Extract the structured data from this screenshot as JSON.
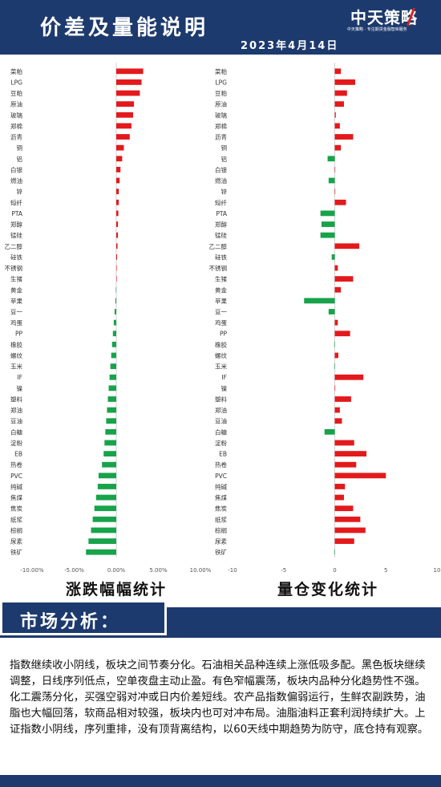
{
  "header": {
    "title": "价差及量能说明",
    "date": "2023年4月14日",
    "logo": "中天策略",
    "logo_sub": "中天策略 · 专注期货金融智库服务"
  },
  "captions": {
    "left": "涨跌幅幅统计",
    "right": "量仓变化统计"
  },
  "section": {
    "title": "市场分析："
  },
  "analysis_text": "指数继续收小阴线，板块之间节奏分化。石油相关品种连续上涨低吸多配。黑色板块继续调整，日线序列低点，空单夜盘主动止盈。有色窄幅震荡，板块内品种分化趋势性不强。化工震荡分化，买强空弱对冲或日内价差短线。农产品指数偏弱运行，生鲜农副跌势，油脂也大幅回落，软商品相对较强，板块内也可对冲布局。油脂油料正套利润持续扩大。上证指数小阴线，序列重排，没有顶背离结构，以60天线中期趋势为防守，底仓持有观察。",
  "colors": {
    "header": "#1d3a6e",
    "positive": "#e3191c",
    "negative": "#17a34a"
  },
  "chart_data": [
    {
      "type": "bar",
      "orientation": "horizontal",
      "title": "涨跌幅幅统计",
      "categories": [
        "菜粕",
        "LPG",
        "豆粕",
        "原油",
        "玻璃",
        "郑棉",
        "沥青",
        "铜",
        "铝",
        "白银",
        "燃油",
        "锌",
        "短纤",
        "PTA",
        "郑醇",
        "锰硅",
        "乙二醇",
        "硅铁",
        "不锈钢",
        "生猪",
        "黄金",
        "苹果",
        "豆一",
        "鸡蛋",
        "PP",
        "橡胶",
        "螺纹",
        "玉米",
        "IF",
        "镍",
        "塑料",
        "郑油",
        "豆油",
        "白糖",
        "淀粉",
        "EB",
        "热卷",
        "PVC",
        "纯碱",
        "焦煤",
        "焦炭",
        "纸浆",
        "棕榈",
        "尿素",
        "铁矿"
      ],
      "values": [
        3.2,
        3.0,
        2.8,
        2.1,
        2.0,
        1.8,
        1.6,
        0.9,
        0.7,
        0.5,
        0.4,
        0.3,
        0.3,
        0.25,
        0.2,
        0.2,
        0.15,
        0.1,
        0.05,
        0.0,
        -0.05,
        -0.1,
        -0.2,
        -0.3,
        -0.4,
        -0.5,
        -0.6,
        -0.7,
        -0.8,
        -0.9,
        -1.0,
        -1.1,
        -1.2,
        -1.3,
        -1.4,
        -1.5,
        -1.7,
        -2.1,
        -2.2,
        -2.4,
        -2.6,
        -2.8,
        -3.0,
        -3.3,
        -3.6
      ],
      "xlim": [
        -10,
        10
      ],
      "tick_labels": [
        "-10.00%",
        "-5.00%",
        "0.00%",
        "5.00%",
        "10.00%"
      ],
      "ticks": [
        -10,
        -5,
        0,
        5,
        10
      ]
    },
    {
      "type": "bar",
      "orientation": "horizontal",
      "title": "量仓变化统计",
      "categories": [
        "菜粕",
        "LPG",
        "豆粕",
        "原油",
        "玻璃",
        "郑棉",
        "沥青",
        "铜",
        "铝",
        "白银",
        "燃油",
        "锌",
        "短纤",
        "PTA",
        "郑醇",
        "锰硅",
        "乙二醇",
        "硅铁",
        "不锈钢",
        "生猪",
        "黄金",
        "苹果",
        "豆一",
        "鸡蛋",
        "PP",
        "橡胶",
        "螺纹",
        "玉米",
        "IF",
        "镍",
        "塑料",
        "郑油",
        "豆油",
        "白糖",
        "淀粉",
        "EB",
        "热卷",
        "PVC",
        "纯碱",
        "焦煤",
        "焦炭",
        "纸浆",
        "棕榈",
        "尿素",
        "铁矿"
      ],
      "values": [
        0.6,
        2.0,
        1.2,
        0.9,
        0.1,
        0.5,
        1.8,
        0.6,
        -0.7,
        0.0,
        -0.6,
        0.05,
        1.1,
        -1.4,
        -1.3,
        -1.4,
        2.4,
        -0.3,
        0.3,
        1.8,
        0.6,
        -3.0,
        -0.6,
        0.3,
        1.5,
        -0.05,
        0.35,
        -0.02,
        2.8,
        0.05,
        1.6,
        0.5,
        0.7,
        -1.0,
        1.9,
        3.1,
        2.1,
        5.0,
        1.0,
        0.9,
        1.8,
        2.5,
        3.0,
        1.9,
        -0.05
      ],
      "xlim": [
        -10,
        10
      ],
      "tick_labels": [
        "-10",
        "-5",
        "0",
        "5",
        "10"
      ],
      "ticks": [
        -10,
        -5,
        0,
        5,
        10
      ]
    }
  ]
}
